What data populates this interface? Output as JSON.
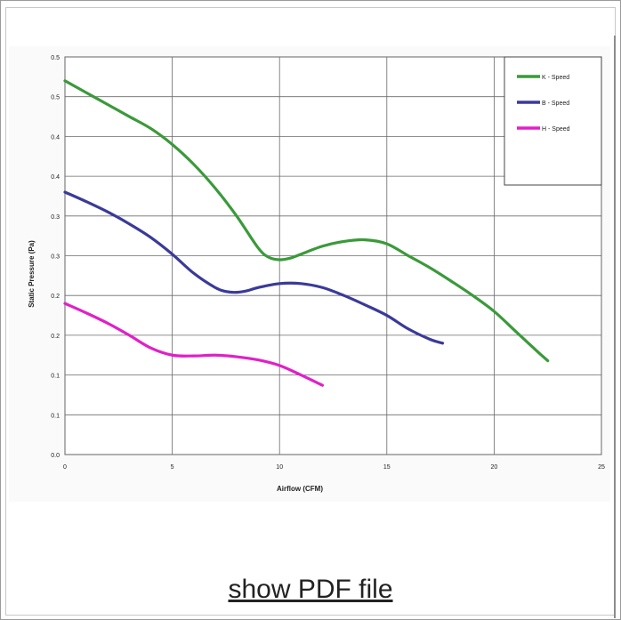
{
  "link": {
    "label": "show PDF file"
  },
  "chart_data": {
    "type": "line",
    "title": "",
    "xlabel": "Airflow (CFM)",
    "ylabel": "Static Pressure (Pa)",
    "xlim": [
      0,
      25
    ],
    "ylim": [
      0,
      0.5
    ],
    "xticks": [
      0,
      5,
      10,
      15,
      20,
      25
    ],
    "xtick_labels": [
      "0",
      "5",
      "10",
      "15",
      "20",
      "25"
    ],
    "yticks": [
      0,
      0.05,
      0.1,
      0.15,
      0.2,
      0.25,
      0.3,
      0.35,
      0.4,
      0.45,
      0.5
    ],
    "ytick_labels": [
      "0.0",
      "0.1",
      "0.1",
      "0.2",
      "0.2",
      "0.3",
      "0.3",
      "0.4",
      "0.4",
      "0.5",
      "0.5"
    ],
    "grid": true,
    "legend_position": "top-right",
    "series": [
      {
        "name": "K - Speed",
        "color": "#3a9a3a",
        "x": [
          0,
          1,
          2,
          3,
          4,
          5,
          6,
          7,
          8,
          9,
          9.5,
          10,
          10.5,
          11,
          12,
          13,
          14,
          15,
          16,
          17,
          18,
          19,
          20,
          21,
          22,
          22.5
        ],
        "y": [
          0.47,
          0.455,
          0.44,
          0.425,
          0.41,
          0.39,
          0.365,
          0.335,
          0.3,
          0.26,
          0.248,
          0.245,
          0.247,
          0.252,
          0.262,
          0.268,
          0.27,
          0.265,
          0.25,
          0.235,
          0.218,
          0.2,
          0.18,
          0.155,
          0.13,
          0.118
        ]
      },
      {
        "name": "B - Speed",
        "color": "#3a3a9a",
        "x": [
          0,
          1,
          2,
          3,
          4,
          5,
          6,
          7,
          7.5,
          8,
          8.5,
          9,
          10,
          11,
          12,
          13,
          14,
          15,
          16,
          17,
          17.6
        ],
        "y": [
          0.33,
          0.318,
          0.305,
          0.29,
          0.273,
          0.252,
          0.228,
          0.21,
          0.205,
          0.204,
          0.206,
          0.21,
          0.215,
          0.215,
          0.21,
          0.2,
          0.188,
          0.175,
          0.158,
          0.145,
          0.14
        ]
      },
      {
        "name": "H - Speed",
        "color": "#e020c8",
        "x": [
          0,
          1,
          2,
          3,
          4,
          5,
          6,
          7,
          8,
          9,
          10,
          11,
          12
        ],
        "y": [
          0.19,
          0.178,
          0.165,
          0.15,
          0.134,
          0.125,
          0.124,
          0.125,
          0.123,
          0.119,
          0.112,
          0.1,
          0.087
        ]
      }
    ]
  }
}
